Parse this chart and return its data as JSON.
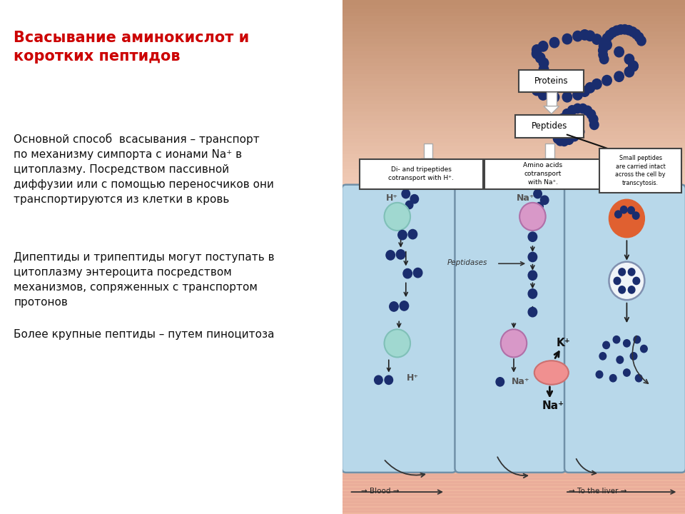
{
  "title": "Всасывание аминокислот и\nкоротких пептидов",
  "title_color": "#cc0000",
  "title_fontsize": 15,
  "body_text_1": "Основной способ  всасывания – транспорт\nпо механизму симпорта с ионами Na⁺ в\nцитоплазму. Посредством пассивной\nдиффузии или с помощью переносчиков они\nтранспортируются из клетки в кровь",
  "body_text_2": "Дипептиды и трипептиды могут поступать в\nцитоплазму энтероцита посредством\nмеханизмов, сопряженных с транспортом\nпротонов",
  "body_text_3": "Более крупные пептиды – путем пиноцитоза",
  "body_fontsize": 11,
  "body_color": "#111111",
  "bg_color": "#ffffff",
  "bead_color": "#1a2d6e",
  "cell_color": "#b8d8ea",
  "top_bg_color_1": "#f5c090",
  "top_bg_color_2": "#e88855",
  "blood_color": "#f0b8a0",
  "blood_stripe_color": "#e8a898",
  "h_transporter_color": "#a0d8d0",
  "na_transporter_color": "#d898c8",
  "pump_color": "#f09090",
  "vesicle_orange_color": "#e06030",
  "vesicle_white_color": "#f0f4f8"
}
